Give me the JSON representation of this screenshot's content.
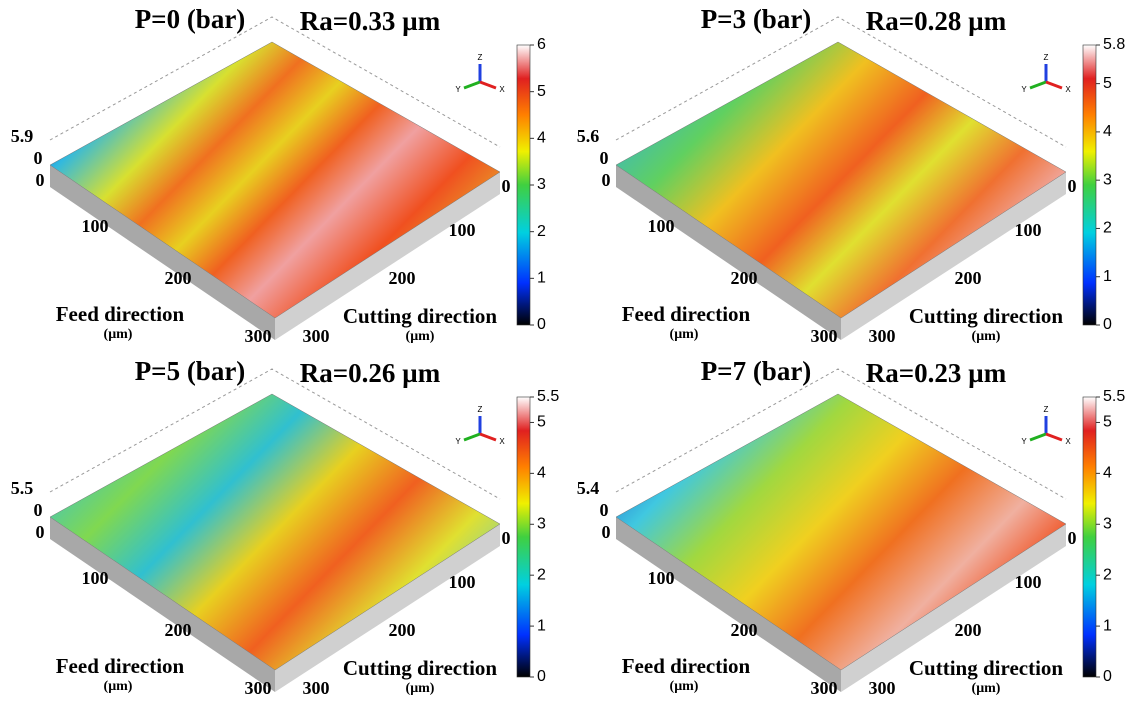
{
  "panels": [
    {
      "title": "P=0 (bar)",
      "ra": "Ra=0.33 µm",
      "z_top": "5.9",
      "z_zero": "0",
      "feed_ticks": [
        "0",
        "100",
        "200",
        "300"
      ],
      "cutting_ticks": [
        "0",
        "100",
        "200",
        "300"
      ],
      "feed_label": "Feed direction",
      "feed_unit": "(μm)",
      "cutting_label": "Cutting direction",
      "cutting_unit": "(μm)",
      "axes_icon": [
        "Z",
        "Y",
        "X"
      ],
      "colorbar_ticks": [
        0,
        1,
        2,
        3,
        4,
        5,
        6
      ]
    },
    {
      "title": "P=3 (bar)",
      "ra": "Ra=0.28 µm",
      "z_top": "5.6",
      "z_zero": "0",
      "feed_ticks": [
        "0",
        "100",
        "200",
        "300"
      ],
      "cutting_ticks": [
        "0",
        "100",
        "200",
        "300"
      ],
      "feed_label": "Feed direction",
      "feed_unit": "(μm)",
      "cutting_label": "Cutting direction",
      "cutting_unit": "(μm)",
      "axes_icon": [
        "Z",
        "Y",
        "X"
      ],
      "colorbar_ticks": [
        0,
        1,
        2,
        3,
        4,
        5,
        5.8
      ]
    },
    {
      "title": "P=5 (bar)",
      "ra": "Ra=0.26 µm",
      "z_top": "5.5",
      "z_zero": "0",
      "feed_ticks": [
        "0",
        "100",
        "200",
        "300"
      ],
      "cutting_ticks": [
        "0",
        "100",
        "200",
        "300"
      ],
      "feed_label": "Feed direction",
      "feed_unit": "(μm)",
      "cutting_label": "Cutting direction",
      "cutting_unit": "(μm)",
      "axes_icon": [
        "Z",
        "Y",
        "X"
      ],
      "colorbar_ticks": [
        0,
        1,
        2,
        3,
        4,
        5,
        5.5
      ]
    },
    {
      "title": "P=7 (bar)",
      "ra": "Ra=0.23 µm",
      "z_top": "5.4",
      "z_zero": "0",
      "feed_ticks": [
        "0",
        "100",
        "200",
        "300"
      ],
      "cutting_ticks": [
        "0",
        "100",
        "200",
        "300"
      ],
      "feed_label": "Feed direction",
      "feed_unit": "(μm)",
      "cutting_label": "Cutting direction",
      "cutting_unit": "(μm)",
      "axes_icon": [
        "Z",
        "Y",
        "X"
      ],
      "colorbar_ticks": [
        0,
        1,
        2,
        3,
        4,
        5,
        5.5
      ]
    }
  ]
}
